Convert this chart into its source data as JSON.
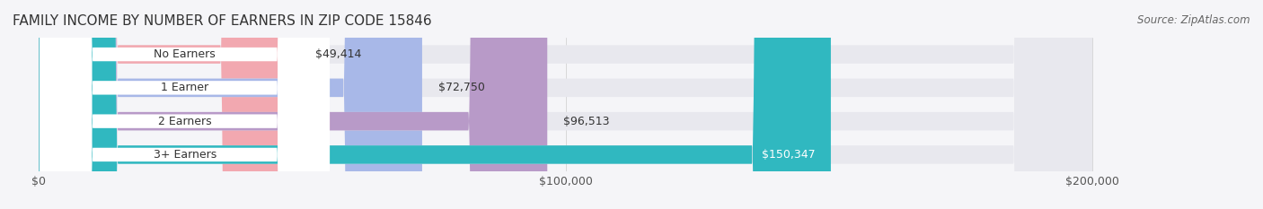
{
  "title": "FAMILY INCOME BY NUMBER OF EARNERS IN ZIP CODE 15846",
  "source": "Source: ZipAtlas.com",
  "categories": [
    "No Earners",
    "1 Earner",
    "2 Earners",
    "3+ Earners"
  ],
  "values": [
    49414,
    72750,
    96513,
    150347
  ],
  "labels": [
    "$49,414",
    "$72,750",
    "$96,513",
    "$150,347"
  ],
  "bar_colors": [
    "#f2a8b0",
    "#a8b8e8",
    "#b89ac8",
    "#30b8c0"
  ],
  "bar_bg_color": "#e8e8ee",
  "xlim": [
    0,
    200000
  ],
  "xticks": [
    0,
    100000,
    200000
  ],
  "xticklabels": [
    "$0",
    "$100,000",
    "$200,000"
  ],
  "background_color": "#f5f5f8",
  "title_fontsize": 11,
  "label_fontsize": 9,
  "source_fontsize": 8.5,
  "tick_fontsize": 9
}
